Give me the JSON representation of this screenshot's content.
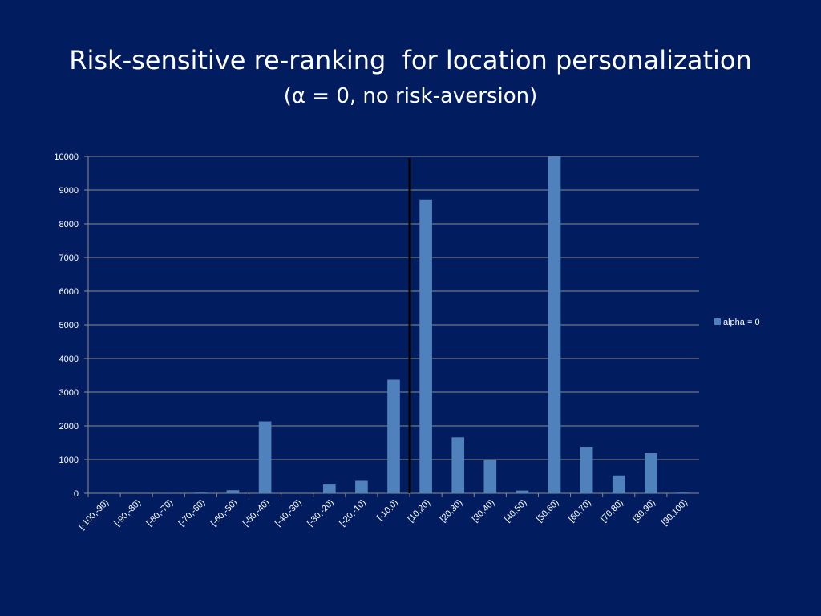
{
  "slide": {
    "title": "Risk-sensitive re-ranking  for location personalization",
    "subtitle": "(α = 0, no risk-aversion)"
  },
  "chart_data": {
    "type": "bar",
    "title": "",
    "xlabel": "",
    "ylabel": "",
    "categories": [
      "[-100,-90)",
      "[-90,-80)",
      "[-80,-70)",
      "[-70,-60)",
      "[-60,-50)",
      "[-50,-40)",
      "[-40,-30)",
      "[-30,-20)",
      "[-20,-10)",
      "[-10,0)",
      "[10,20)",
      "[20,30)",
      "[30,40)",
      "[40,50)",
      "[50,60)",
      "[60,70)",
      "[70,80)",
      "[80,90)",
      "[90,100)"
    ],
    "series": [
      {
        "name": "alpha = 0",
        "color": "#4f81bd",
        "values": [
          0,
          0,
          5,
          20,
          90,
          2130,
          0,
          260,
          370,
          3370,
          8720,
          1660,
          990,
          80,
          10000,
          1380,
          530,
          1190,
          20
        ]
      }
    ],
    "ylim": [
      0,
      10000
    ],
    "yticks": [
      0,
      1000,
      2000,
      3000,
      4000,
      5000,
      6000,
      7000,
      8000,
      9000,
      10000
    ],
    "grid": true,
    "legend_position": "right",
    "reference_line": {
      "x_between": [
        "[-10,0)",
        "[10,20)"
      ],
      "color": "#000000"
    }
  }
}
